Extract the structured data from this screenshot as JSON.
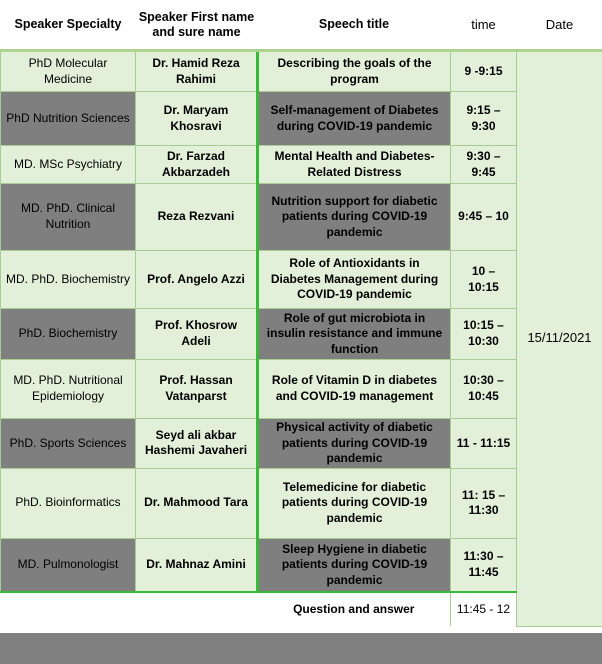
{
  "table": {
    "headers": [
      "Speaker Specialty",
      "Speaker First name and sure name",
      "Speech title",
      "time",
      "Date"
    ],
    "date": "15/11/2021",
    "rows": [
      {
        "specialty": "PhD Molecular Medicine",
        "name": "Dr. Hamid Reza Rahimi",
        "title": "Describing the goals of the program",
        "time": "9 -9:15",
        "shaded": false
      },
      {
        "specialty": "PhD Nutrition Sciences",
        "name": "Dr. Maryam Khosravi",
        "title": "Self-management of Diabetes during COVID-19 pandemic",
        "time": "9:15 – 9:30",
        "shaded": true
      },
      {
        "specialty": "MD. MSc Psychiatry",
        "name": "Dr. Farzad Akbarzadeh",
        "title": "Mental Health and Diabetes-Related Distress",
        "time": "9:30 – 9:45",
        "shaded": false
      },
      {
        "specialty": "MD. PhD. Clinical Nutrition",
        "name": "Reza Rezvani",
        "title": "Nutrition support for diabetic patients during COVID-19 pandemic",
        "time": "9:45 – 10",
        "shaded": true
      },
      {
        "specialty": "MD. PhD. Biochemistry",
        "name": "Prof. Angelo Azzi",
        "title": "Role of Antioxidants in Diabetes Management during COVID-19 pandemic",
        "time": "10 – 10:15",
        "shaded": false
      },
      {
        "specialty": "PhD. Biochemistry",
        "name": "Prof. Khosrow Adeli",
        "title": "Role of gut microbiota in insulin resistance and immune function",
        "time": "10:15 – 10:30",
        "shaded": true
      },
      {
        "specialty": "MD. PhD. Nutritional Epidemiology",
        "name": "Prof. Hassan Vatanparst",
        "title": "Role of Vitamin D in diabetes and COVID-19 management",
        "time": "10:30 – 10:45",
        "shaded": false
      },
      {
        "specialty": "PhD. Sports Sciences",
        "name": "Seyd ali akbar Hashemi Javaheri",
        "title": "Physical activity of diabetic patients during COVID-19 pandemic",
        "time": "11 - 11:15",
        "shaded": true
      },
      {
        "specialty": "PhD. Bioinformatics",
        "name": "Dr. Mahmood Tara",
        "title": "Telemedicine for diabetic patients during COVID-19 pandemic",
        "time": "11: 15 – 11:30",
        "shaded": false
      },
      {
        "specialty": "MD. Pulmonologist",
        "name": "Dr. Mahnaz Amini",
        "title": "Sleep Hygiene in diabetic patients during COVID-19 pandemic",
        "time": "11:30 – 11:45",
        "shaded": true
      }
    ],
    "qa_row": {
      "title": "Question and answer",
      "time": "11:45 - 12"
    }
  },
  "colors": {
    "row_green": "#e2efd9",
    "row_gray": "#7f7f7f",
    "accent_green": "#3ab83a",
    "grid_green": "#a9cc94",
    "footer_gray": "#808080"
  }
}
